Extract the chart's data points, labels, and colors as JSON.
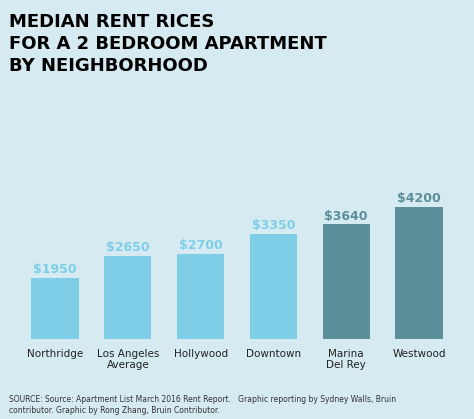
{
  "title": "MEDIAN RENT RICES\nFOR A 2 BEDROOM APARTMENT\nBY NEIGHBORHOOD",
  "categories": [
    "Northridge",
    "Los Angeles\nAverage",
    "Hollywood",
    "Downtown",
    "Marina\nDel Rey",
    "Westwood"
  ],
  "values": [
    1950,
    2650,
    2700,
    3350,
    3640,
    4200
  ],
  "labels": [
    "$1950",
    "$2650",
    "$2700",
    "$3350",
    "$3640",
    "$4200"
  ],
  "bar_colors": [
    "#7ecee8",
    "#7ecee8",
    "#7ecee8",
    "#7ecee8",
    "#5b8f99",
    "#5b8f99"
  ],
  "background_color": "#d6eaf2",
  "title_color": "#000000",
  "label_colors": [
    "#7ecee8",
    "#7ecee8",
    "#7ecee8",
    "#7ecee8",
    "#5b8f99",
    "#5b8f99"
  ],
  "source_text": "SOURCE: Source: Apartment List March 2016 Rent Report.   Graphic reporting by Sydney Walls, Bruin\ncontributor. Graphic by Rong Zhang, Bruin Contributor.",
  "ylim": [
    0,
    4700
  ],
  "xlabel": "",
  "ylabel": ""
}
